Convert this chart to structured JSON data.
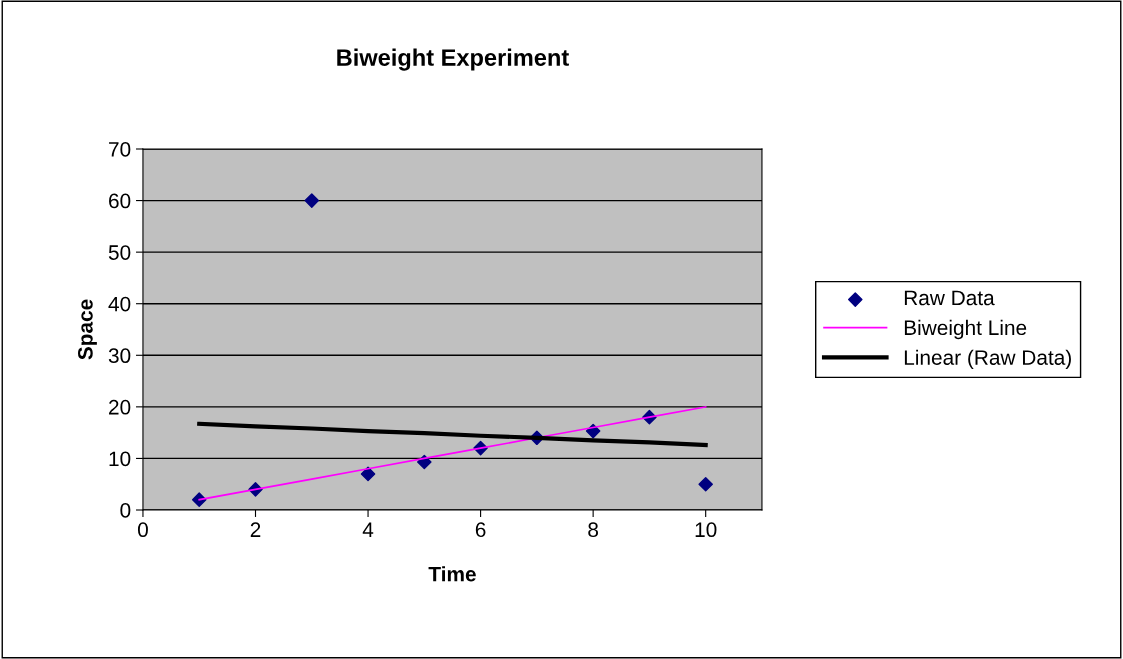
{
  "chart_data": {
    "type": "scatter",
    "title": "Biweight Experiment",
    "xlabel": "Time",
    "ylabel": "Space",
    "x": [
      1,
      2,
      3,
      4,
      5,
      6,
      7,
      8,
      9,
      10
    ],
    "series": [
      {
        "name": "Raw Data",
        "color": "#000080",
        "marker": "diamond",
        "values": [
          2,
          4,
          60,
          7,
          9.3,
          12,
          14,
          15.3,
          18,
          5
        ]
      },
      {
        "name": "Biweight Line",
        "type": "line",
        "color": "#ff00ff",
        "values": [
          2,
          4,
          6,
          8,
          10,
          12,
          14,
          16,
          18,
          20
        ]
      },
      {
        "name": "Linear (Raw Data)",
        "type": "line",
        "color": "#000000",
        "values": [
          16.7,
          16.2,
          15.8,
          15.3,
          14.9,
          14.4,
          14.0,
          13.5,
          13.1,
          12.6
        ]
      }
    ],
    "xlim": [
      0,
      11
    ],
    "xticks": [
      0,
      2,
      4,
      6,
      8,
      10
    ],
    "ylim": [
      0,
      70
    ],
    "yticks": [
      0,
      10,
      20,
      30,
      40,
      50,
      60,
      70
    ],
    "grid": "y",
    "legend": "right"
  }
}
